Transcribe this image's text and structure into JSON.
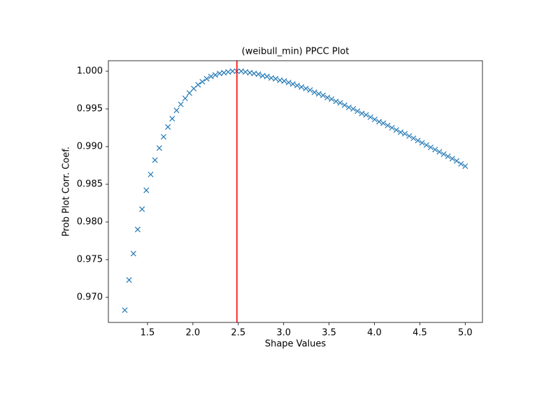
{
  "chart_data": {
    "type": "scatter",
    "title": "(weibull_min) PPCC Plot",
    "x_label": "Shape Values",
    "y_label": "Prob Plot Corr. Coef.",
    "marker": "x",
    "series": [
      {
        "color": "#1f77b4",
        "x": [
          1.25,
          1.297,
          1.345,
          1.392,
          1.44,
          1.487,
          1.535,
          1.582,
          1.63,
          1.677,
          1.725,
          1.772,
          1.82,
          1.867,
          1.915,
          1.962,
          2.009,
          2.057,
          2.104,
          2.152,
          2.199,
          2.247,
          2.294,
          2.342,
          2.389,
          2.437,
          2.484,
          2.532,
          2.579,
          2.627,
          2.674,
          2.722,
          2.769,
          2.816,
          2.864,
          2.911,
          2.959,
          3.006,
          3.054,
          3.101,
          3.149,
          3.196,
          3.244,
          3.291,
          3.339,
          3.386,
          3.434,
          3.481,
          3.528,
          3.576,
          3.623,
          3.671,
          3.718,
          3.766,
          3.813,
          3.861,
          3.908,
          3.956,
          4.003,
          4.051,
          4.098,
          4.146,
          4.193,
          4.241,
          4.288,
          4.335,
          4.383,
          4.43,
          4.478,
          4.525,
          4.573,
          4.62,
          4.668,
          4.715,
          4.763,
          4.81,
          4.858,
          4.905,
          4.953,
          5.0
        ],
        "values": [
          0.9683,
          0.9723,
          0.9758,
          0.979,
          0.9817,
          0.9842,
          0.9863,
          0.9882,
          0.9898,
          0.9913,
          0.9926,
          0.9937,
          0.9948,
          0.9956,
          0.9964,
          0.9971,
          0.9977,
          0.9982,
          0.9986,
          0.999,
          0.9993,
          0.9995,
          0.9997,
          0.9998,
          0.9999,
          1.0,
          1.0,
          1.0,
          0.9999,
          0.9998,
          0.9997,
          0.9996,
          0.9994,
          0.9993,
          0.9991,
          0.999,
          0.9988,
          0.9987,
          0.9985,
          0.9983,
          0.9981,
          0.9979,
          0.9977,
          0.9975,
          0.9972,
          0.997,
          0.9968,
          0.9965,
          0.9963,
          0.996,
          0.9958,
          0.9955,
          0.9952,
          0.995,
          0.9947,
          0.9944,
          0.9942,
          0.9939,
          0.9936,
          0.9933,
          0.9931,
          0.9928,
          0.9925,
          0.9922,
          0.9919,
          0.9917,
          0.9914,
          0.9911,
          0.9908,
          0.9905,
          0.9902,
          0.9899,
          0.9896,
          0.9893,
          0.989,
          0.9887,
          0.9884,
          0.9881,
          0.9877,
          0.9874
        ]
      }
    ],
    "vline": {
      "x": 2.485,
      "color": "#ff0000"
    },
    "xlim": [
      1.069,
      5.19
    ],
    "ylim": [
      0.96667,
      1.00139
    ],
    "xticks": [
      {
        "value": 1.5,
        "label": "1.5"
      },
      {
        "value": 2.0,
        "label": "2.0"
      },
      {
        "value": 2.5,
        "label": "2.5"
      },
      {
        "value": 3.0,
        "label": "3.0"
      },
      {
        "value": 3.5,
        "label": "3.5"
      },
      {
        "value": 4.0,
        "label": "4.0"
      },
      {
        "value": 4.5,
        "label": "4.5"
      },
      {
        "value": 5.0,
        "label": "5.0"
      }
    ],
    "yticks": [
      {
        "value": 0.97,
        "label": "0.970"
      },
      {
        "value": 0.975,
        "label": "0.975"
      },
      {
        "value": 0.98,
        "label": "0.980"
      },
      {
        "value": 0.985,
        "label": "0.985"
      },
      {
        "value": 0.99,
        "label": "0.990"
      },
      {
        "value": 0.995,
        "label": "0.995"
      },
      {
        "value": 1.0,
        "label": "1.000"
      }
    ],
    "grid": false
  }
}
